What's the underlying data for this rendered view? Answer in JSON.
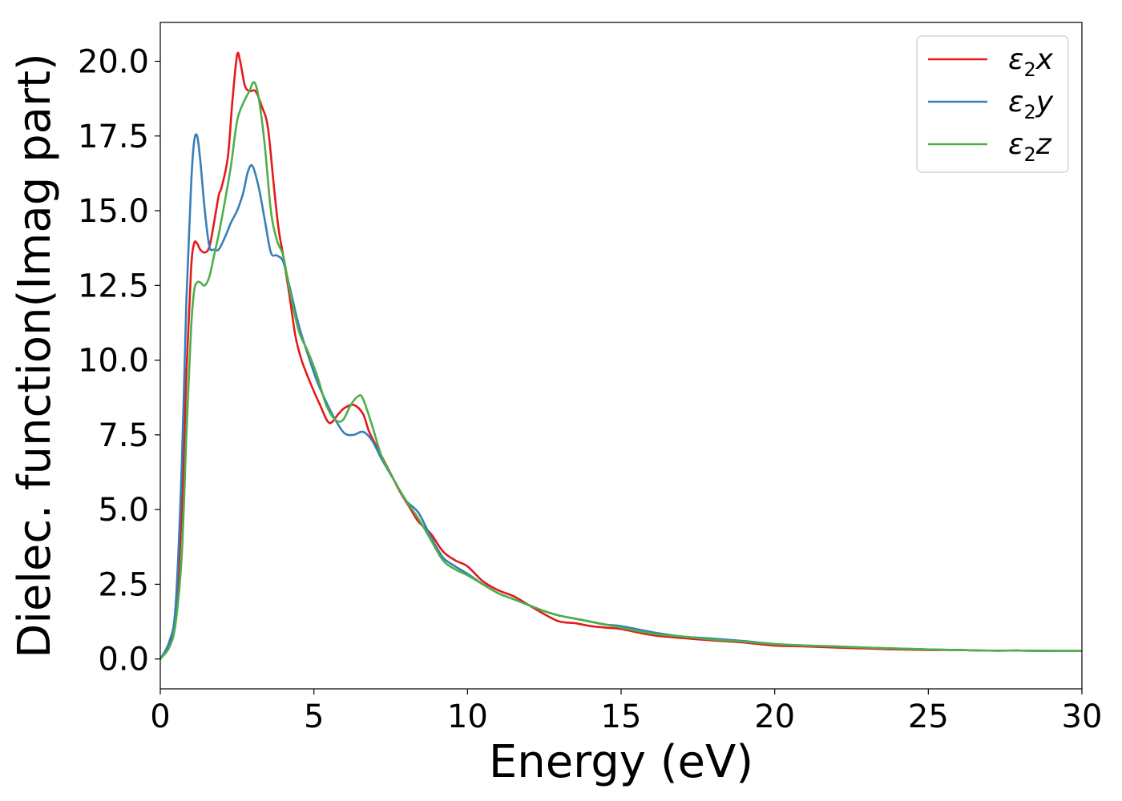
{
  "chart_data": {
    "type": "line",
    "title": "",
    "xlabel": "Energy (eV)",
    "ylabel": "Dielec. function(Imag part)",
    "xlim": [
      0,
      30
    ],
    "ylim": [
      -1.0,
      21.3
    ],
    "xticks": [
      0,
      5,
      10,
      15,
      20,
      25,
      30
    ],
    "xtick_labels": [
      "0",
      "5",
      "10",
      "15",
      "20",
      "25",
      "30"
    ],
    "yticks": [
      0.0,
      2.5,
      5.0,
      7.5,
      10.0,
      12.5,
      15.0,
      17.5,
      20.0
    ],
    "ytick_labels": [
      "0.0",
      "2.5",
      "5.0",
      "7.5",
      "10.0",
      "12.5",
      "15.0",
      "17.5",
      "20.0"
    ],
    "grid": false,
    "legend_position": "top-right",
    "series": [
      {
        "name": "ε2x",
        "legend_base": "ε",
        "legend_sub": "2",
        "legend_suffix": "x",
        "color": "#e41a1c",
        "x": [
          0,
          0.3,
          0.5,
          0.7,
          0.85,
          1.0,
          1.1,
          1.2,
          1.3,
          1.45,
          1.6,
          1.75,
          1.9,
          2.0,
          2.2,
          2.35,
          2.5,
          2.6,
          2.75,
          2.9,
          3.1,
          3.3,
          3.5,
          3.7,
          3.85,
          4.0,
          4.2,
          4.4,
          4.6,
          4.9,
          5.2,
          5.5,
          5.8,
          6.0,
          6.3,
          6.6,
          6.8,
          7.1,
          7.5,
          7.8,
          8.1,
          8.4,
          8.8,
          9.2,
          9.6,
          10.0,
          10.5,
          11.0,
          11.5,
          12.0,
          12.5,
          13.0,
          13.5,
          14.0,
          14.5,
          15.0,
          16.0,
          17.0,
          18.0,
          19.0,
          20.0,
          21.0,
          22.0,
          23.0,
          24.0,
          25.0,
          26.0,
          27.0,
          28.0,
          29.0,
          30.0
        ],
        "values": [
          0.0,
          0.5,
          1.5,
          5.0,
          9.5,
          13.0,
          13.9,
          13.9,
          13.7,
          13.6,
          13.8,
          14.6,
          15.5,
          15.8,
          16.8,
          18.7,
          20.2,
          20.0,
          19.2,
          19.0,
          19.0,
          18.5,
          17.8,
          15.8,
          14.4,
          13.5,
          12.2,
          10.8,
          10.0,
          9.2,
          8.5,
          7.9,
          8.2,
          8.4,
          8.5,
          8.2,
          7.6,
          7.0,
          6.2,
          5.6,
          5.1,
          4.6,
          4.2,
          3.6,
          3.3,
          3.1,
          2.6,
          2.3,
          2.1,
          1.8,
          1.5,
          1.25,
          1.2,
          1.1,
          1.05,
          1.0,
          0.8,
          0.7,
          0.62,
          0.55,
          0.45,
          0.42,
          0.38,
          0.35,
          0.32,
          0.3,
          0.3,
          0.28,
          0.28,
          0.27,
          0.27
        ]
      },
      {
        "name": "ε2y",
        "legend_base": "ε",
        "legend_sub": "2",
        "legend_suffix": "y",
        "color": "#377eb8",
        "x": [
          0,
          0.3,
          0.5,
          0.7,
          0.85,
          1.0,
          1.1,
          1.2,
          1.3,
          1.45,
          1.6,
          1.75,
          1.9,
          2.1,
          2.3,
          2.5,
          2.7,
          2.85,
          3.0,
          3.2,
          3.4,
          3.6,
          3.8,
          4.0,
          4.2,
          4.5,
          4.8,
          5.1,
          5.4,
          5.7,
          6.0,
          6.3,
          6.6,
          6.9,
          7.2,
          7.6,
          8.0,
          8.4,
          8.8,
          9.2,
          9.6,
          10.0,
          10.5,
          11.0,
          11.5,
          12.0,
          12.5,
          13.0,
          13.5,
          14.0,
          14.5,
          15.0,
          16.0,
          17.0,
          18.0,
          19.0,
          20.0,
          21.0,
          22.0,
          23.0,
          24.0,
          25.0,
          26.0,
          27.0,
          28.0,
          29.0,
          30.0
        ],
        "values": [
          0.0,
          0.6,
          1.8,
          6.5,
          12.0,
          15.8,
          17.3,
          17.5,
          16.7,
          15.0,
          13.8,
          13.7,
          13.7,
          14.1,
          14.6,
          15.0,
          15.6,
          16.3,
          16.5,
          15.8,
          14.7,
          13.6,
          13.5,
          13.3,
          12.5,
          11.2,
          10.2,
          9.3,
          8.6,
          8.0,
          7.55,
          7.5,
          7.6,
          7.3,
          6.7,
          6.0,
          5.3,
          4.9,
          4.1,
          3.4,
          3.1,
          2.85,
          2.5,
          2.2,
          2.0,
          1.8,
          1.6,
          1.45,
          1.35,
          1.25,
          1.15,
          1.1,
          0.9,
          0.75,
          0.68,
          0.6,
          0.5,
          0.45,
          0.42,
          0.38,
          0.35,
          0.32,
          0.3,
          0.28,
          0.28,
          0.27,
          0.27
        ]
      },
      {
        "name": "ε2z",
        "legend_base": "ε",
        "legend_sub": "2",
        "legend_suffix": "z",
        "color": "#4daf4a",
        "x": [
          0,
          0.3,
          0.5,
          0.7,
          0.85,
          1.0,
          1.1,
          1.2,
          1.3,
          1.45,
          1.6,
          1.75,
          1.9,
          2.1,
          2.3,
          2.5,
          2.7,
          2.9,
          3.05,
          3.2,
          3.4,
          3.6,
          3.8,
          4.0,
          4.2,
          4.5,
          4.8,
          5.1,
          5.4,
          5.7,
          5.95,
          6.2,
          6.45,
          6.6,
          6.9,
          7.2,
          7.6,
          8.0,
          8.4,
          8.8,
          9.2,
          9.6,
          10.0,
          10.5,
          11.0,
          11.5,
          12.0,
          12.5,
          13.0,
          13.5,
          14.0,
          14.5,
          15.0,
          16.0,
          17.0,
          18.0,
          19.0,
          20.0,
          21.0,
          22.0,
          23.0,
          24.0,
          25.0,
          26.0,
          27.0,
          28.0,
          29.0,
          30.0
        ],
        "values": [
          0.0,
          0.4,
          1.2,
          3.5,
          7.5,
          11.0,
          12.3,
          12.6,
          12.6,
          12.5,
          12.8,
          13.5,
          14.2,
          15.3,
          16.5,
          18.0,
          18.6,
          19.0,
          19.3,
          18.8,
          17.2,
          15.0,
          14.0,
          13.5,
          12.4,
          11.0,
          10.3,
          9.5,
          8.5,
          8.0,
          8.0,
          8.5,
          8.8,
          8.7,
          7.8,
          6.8,
          6.0,
          5.3,
          4.7,
          4.0,
          3.3,
          3.0,
          2.8,
          2.5,
          2.2,
          2.0,
          1.8,
          1.6,
          1.45,
          1.35,
          1.25,
          1.15,
          1.05,
          0.85,
          0.75,
          0.65,
          0.58,
          0.5,
          0.45,
          0.42,
          0.38,
          0.35,
          0.32,
          0.3,
          0.28,
          0.28,
          0.27,
          0.27
        ]
      }
    ]
  }
}
